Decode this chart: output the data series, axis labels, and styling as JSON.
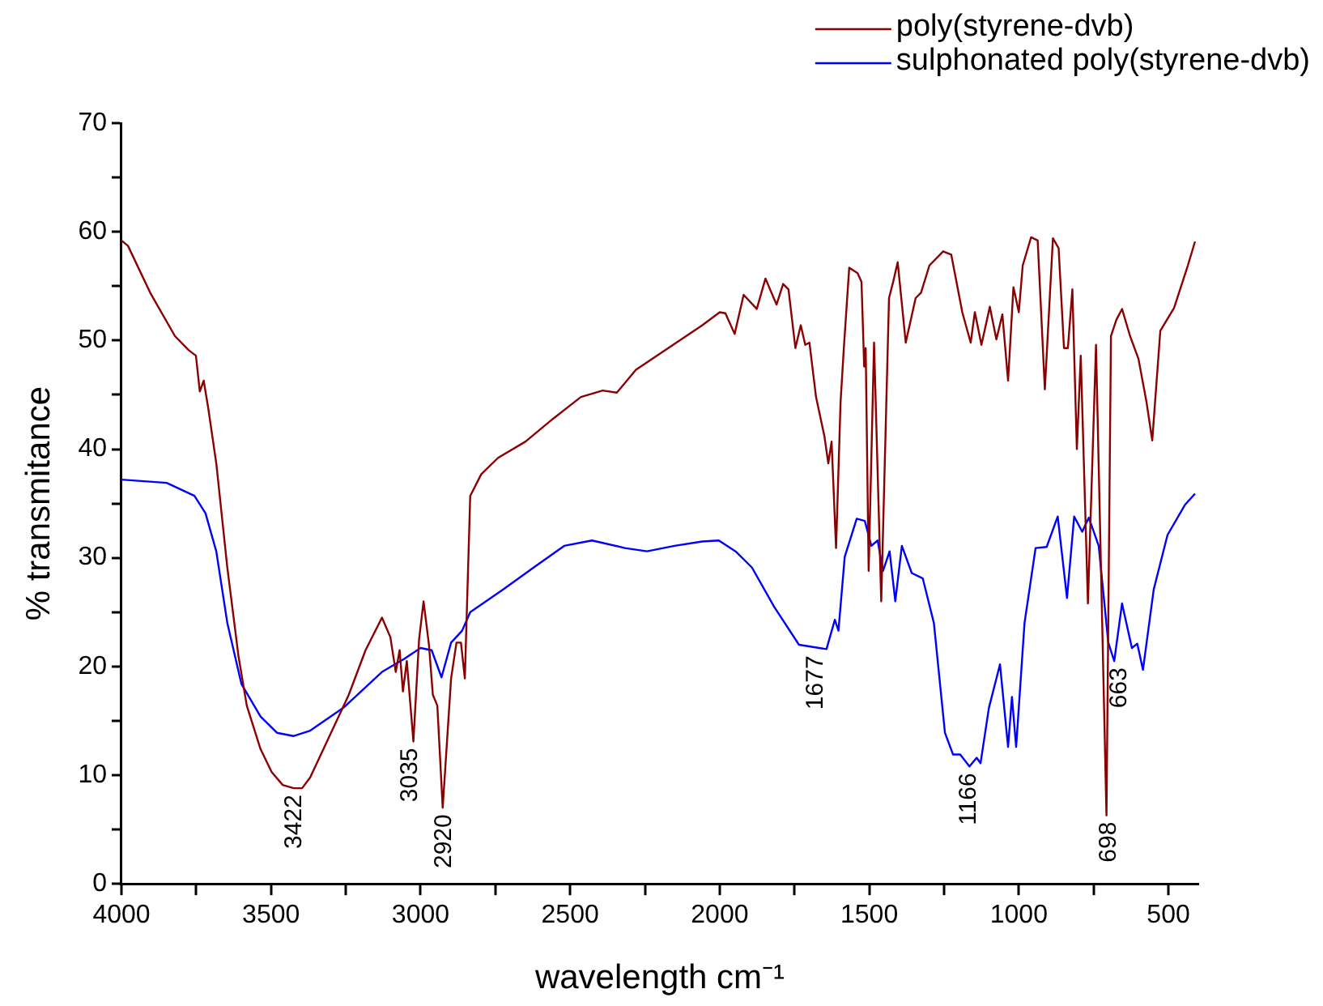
{
  "chart_data": {
    "type": "line",
    "xlabel": "wavelength cm⁻¹",
    "ylabel": "% transmitance",
    "xlim": [
      4000,
      400
    ],
    "ylim": [
      0,
      70
    ],
    "xticks": [
      4000,
      {
        "value": 3750,
        "label": null
      },
      3500,
      {
        "value": 3250,
        "label": null
      },
      3000,
      {
        "value": 2750,
        "label": null
      },
      2500,
      {
        "value": 2250,
        "label": null
      },
      2000,
      {
        "value": 1750,
        "label": null
      },
      1500,
      {
        "value": 1250,
        "label": null
      },
      1000,
      {
        "value": 750,
        "label": null
      },
      500
    ],
    "yticks": [
      0,
      {
        "value": 5,
        "label": null
      },
      10,
      {
        "value": 15,
        "label": null
      },
      20,
      {
        "value": 25,
        "label": null
      },
      30,
      {
        "value": 35,
        "label": null
      },
      40,
      {
        "value": 45,
        "label": null
      },
      50,
      {
        "value": 55,
        "label": null
      },
      60,
      {
        "value": 65,
        "label": null
      },
      70
    ],
    "grid": false,
    "legend": "top right",
    "marker": "none",
    "line_style": "solid",
    "series": [
      {
        "name": "poly(styrene-dvb)",
        "color": "#8b0000",
        "x": [
          4000,
          3978,
          3904,
          3821,
          3775,
          3751,
          3738,
          3725,
          3710,
          3683,
          3646,
          3609,
          3581,
          3535,
          3498,
          3461,
          3424,
          3396,
          3369,
          3313,
          3240,
          3184,
          3129,
          3101,
          3083,
          3070,
          3059,
          3046,
          3024,
          3005,
          2990,
          2972,
          2959,
          2944,
          2926,
          2898,
          2880,
          2865,
          2852,
          2834,
          2797,
          2741,
          2649,
          2557,
          2464,
          2391,
          2344,
          2280,
          2058,
          2000,
          1981,
          1950,
          1920,
          1876,
          1847,
          1810,
          1788,
          1770,
          1747,
          1729,
          1714,
          1700,
          1678,
          1650,
          1637,
          1626,
          1611,
          1596,
          1585,
          1567,
          1539,
          1526,
          1517,
          1512,
          1502,
          1484,
          1460,
          1434,
          1420,
          1405,
          1378,
          1345,
          1327,
          1299,
          1253,
          1226,
          1189,
          1161,
          1147,
          1125,
          1097,
          1075,
          1055,
          1036,
          1018,
          1000,
          987,
          959,
          937,
          913,
          886,
          867,
          849,
          836,
          821,
          806,
          793,
          769,
          742,
          707,
          692,
          674,
          655,
          628,
          600,
          573,
          554,
          527,
          481,
          435,
          411
        ],
        "values": [
          59.2,
          58.7,
          54.4,
          50.4,
          49.1,
          48.6,
          45.3,
          46.3,
          43.8,
          38.7,
          29.1,
          21.0,
          16.4,
          12.4,
          10.3,
          9.1,
          8.8,
          8.8,
          9.8,
          13.1,
          17.4,
          21.5,
          24.5,
          22.7,
          19.5,
          21.5,
          17.7,
          20.5,
          13.1,
          22.5,
          26.0,
          22.0,
          17.4,
          16.4,
          7.0,
          18.9,
          22.2,
          22.2,
          18.9,
          35.7,
          37.7,
          39.2,
          40.7,
          42.8,
          44.8,
          45.4,
          45.2,
          47.3,
          51.4,
          52.6,
          52.5,
          50.6,
          54.2,
          52.9,
          55.7,
          53.3,
          55.2,
          54.7,
          49.3,
          51.4,
          49.6,
          49.8,
          44.8,
          41.2,
          38.7,
          40.7,
          30.9,
          44.3,
          49.3,
          56.7,
          56.2,
          55.4,
          47.6,
          49.3,
          28.8,
          49.8,
          26.0,
          53.9,
          55.4,
          57.2,
          49.8,
          53.9,
          54.4,
          56.9,
          58.2,
          57.9,
          52.6,
          49.8,
          52.6,
          49.6,
          53.1,
          50.1,
          52.4,
          46.3,
          54.9,
          52.6,
          56.9,
          59.5,
          59.2,
          45.5,
          59.4,
          58.5,
          49.3,
          49.3,
          54.7,
          40.0,
          48.6,
          25.8,
          49.6,
          6.3,
          50.4,
          51.9,
          52.9,
          50.4,
          48.3,
          44.3,
          40.8,
          50.9,
          53.0,
          56.9,
          59.1
        ]
      },
      {
        "name": "sulphonated poly(styrene-dvb)",
        "color": "#0000ff",
        "x": [
          4000,
          3849,
          3756,
          3719,
          3683,
          3646,
          3599,
          3535,
          3480,
          3424,
          3369,
          3258,
          3129,
          3055,
          3000,
          2963,
          2930,
          2898,
          2861,
          2834,
          2723,
          2612,
          2520,
          2427,
          2317,
          2243,
          2151,
          2058,
          2003,
          1947,
          1892,
          1818,
          1735,
          1643,
          1615,
          1603,
          1582,
          1542,
          1515,
          1493,
          1472,
          1454,
          1432,
          1413,
          1391,
          1358,
          1321,
          1284,
          1247,
          1220,
          1196,
          1165,
          1141,
          1128,
          1100,
          1063,
          1036,
          1023,
          1009,
          981,
          944,
          907,
          870,
          839,
          815,
          788,
          766,
          733,
          701,
          681,
          655,
          622,
          604,
          585,
          549,
          503,
          444,
          411
        ],
        "values": [
          37.2,
          36.9,
          35.7,
          34.1,
          30.6,
          24.0,
          18.4,
          15.4,
          13.9,
          13.6,
          14.1,
          16.2,
          19.5,
          20.7,
          21.7,
          21.5,
          19.0,
          22.2,
          23.3,
          25.0,
          27.1,
          29.3,
          31.1,
          31.6,
          30.9,
          30.6,
          31.1,
          31.5,
          31.6,
          30.6,
          29.1,
          25.5,
          22.0,
          21.6,
          24.3,
          23.3,
          30.1,
          33.6,
          33.4,
          31.1,
          31.6,
          28.8,
          30.6,
          26.0,
          31.1,
          28.6,
          28.1,
          24.0,
          13.9,
          11.9,
          11.9,
          10.8,
          11.6,
          11.1,
          16.2,
          20.2,
          12.6,
          17.2,
          12.6,
          24.0,
          30.9,
          31.0,
          33.8,
          26.3,
          33.8,
          32.4,
          33.7,
          31.1,
          22.2,
          20.5,
          25.8,
          21.7,
          22.1,
          19.7,
          27.1,
          32.1,
          34.9,
          35.9
        ]
      }
    ],
    "annotations": [
      {
        "text": "3422",
        "x": 3422,
        "y": 8.8
      },
      {
        "text": "3035",
        "x": 3035,
        "y": 13.1
      },
      {
        "text": "2920",
        "x": 2920,
        "y": 7.0
      },
      {
        "text": "1677",
        "x": 1677,
        "y": 21.6
      },
      {
        "text": "1166",
        "x": 1166,
        "y": 10.8
      },
      {
        "text": "698",
        "x": 698,
        "y": 6.3
      },
      {
        "text": "663",
        "x": 663,
        "y": 20.5
      }
    ]
  }
}
